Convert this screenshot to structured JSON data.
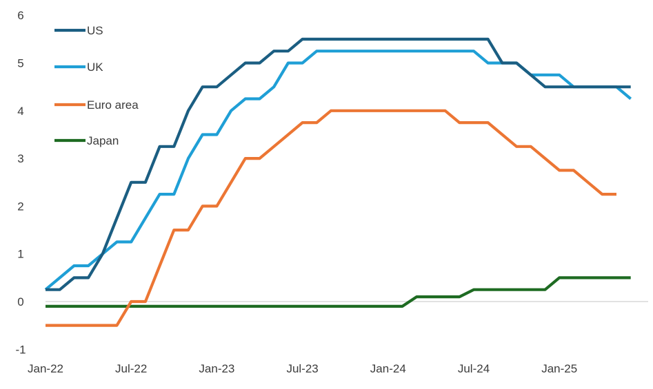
{
  "chart_data": {
    "type": "line",
    "title": "",
    "xlabel": "",
    "ylabel": "",
    "ylim": [
      -1,
      6
    ],
    "yticks": [
      -1,
      0,
      1,
      2,
      3,
      4,
      5,
      6
    ],
    "xlim": [
      "2022-01",
      "2025-06"
    ],
    "xticks": [
      "Jan-22",
      "Jul-22",
      "Jan-23",
      "Jul-23",
      "Jan-24",
      "Jul-24",
      "Jan-25"
    ],
    "grid": false,
    "zero_line": true,
    "legend_position": "top-left",
    "series": [
      {
        "name": "US",
        "color": "#1b5e82",
        "points": [
          [
            "2022-01",
            0.25
          ],
          [
            "2022-02",
            0.25
          ],
          [
            "2022-03",
            0.5
          ],
          [
            "2022-04",
            0.5
          ],
          [
            "2022-05",
            1.0
          ],
          [
            "2022-06",
            1.75
          ],
          [
            "2022-07",
            2.5
          ],
          [
            "2022-08",
            2.5
          ],
          [
            "2022-09",
            3.25
          ],
          [
            "2022-10",
            3.25
          ],
          [
            "2022-11",
            4.0
          ],
          [
            "2022-12",
            4.5
          ],
          [
            "2023-01",
            4.5
          ],
          [
            "2023-02",
            4.75
          ],
          [
            "2023-03",
            5.0
          ],
          [
            "2023-04",
            5.0
          ],
          [
            "2023-05",
            5.25
          ],
          [
            "2023-06",
            5.25
          ],
          [
            "2023-07",
            5.5
          ],
          [
            "2023-08",
            5.5
          ],
          [
            "2023-09",
            5.5
          ],
          [
            "2023-10",
            5.5
          ],
          [
            "2023-11",
            5.5
          ],
          [
            "2023-12",
            5.5
          ],
          [
            "2024-01",
            5.5
          ],
          [
            "2024-02",
            5.5
          ],
          [
            "2024-03",
            5.5
          ],
          [
            "2024-04",
            5.5
          ],
          [
            "2024-05",
            5.5
          ],
          [
            "2024-06",
            5.5
          ],
          [
            "2024-07",
            5.5
          ],
          [
            "2024-08",
            5.5
          ],
          [
            "2024-09",
            5.0
          ],
          [
            "2024-10",
            5.0
          ],
          [
            "2024-11",
            4.75
          ],
          [
            "2024-12",
            4.5
          ],
          [
            "2025-01",
            4.5
          ],
          [
            "2025-02",
            4.5
          ],
          [
            "2025-03",
            4.5
          ],
          [
            "2025-04",
            4.5
          ],
          [
            "2025-05",
            4.5
          ],
          [
            "2025-06",
            4.5
          ]
        ]
      },
      {
        "name": "UK",
        "color": "#1f9fd6",
        "points": [
          [
            "2022-01",
            0.25
          ],
          [
            "2022-02",
            0.5
          ],
          [
            "2022-03",
            0.75
          ],
          [
            "2022-04",
            0.75
          ],
          [
            "2022-05",
            1.0
          ],
          [
            "2022-06",
            1.25
          ],
          [
            "2022-07",
            1.25
          ],
          [
            "2022-08",
            1.75
          ],
          [
            "2022-09",
            2.25
          ],
          [
            "2022-10",
            2.25
          ],
          [
            "2022-11",
            3.0
          ],
          [
            "2022-12",
            3.5
          ],
          [
            "2023-01",
            3.5
          ],
          [
            "2023-02",
            4.0
          ],
          [
            "2023-03",
            4.25
          ],
          [
            "2023-04",
            4.25
          ],
          [
            "2023-05",
            4.5
          ],
          [
            "2023-06",
            5.0
          ],
          [
            "2023-07",
            5.0
          ],
          [
            "2023-08",
            5.25
          ],
          [
            "2023-09",
            5.25
          ],
          [
            "2023-10",
            5.25
          ],
          [
            "2023-11",
            5.25
          ],
          [
            "2023-12",
            5.25
          ],
          [
            "2024-01",
            5.25
          ],
          [
            "2024-02",
            5.25
          ],
          [
            "2024-03",
            5.25
          ],
          [
            "2024-04",
            5.25
          ],
          [
            "2024-05",
            5.25
          ],
          [
            "2024-06",
            5.25
          ],
          [
            "2024-07",
            5.25
          ],
          [
            "2024-08",
            5.0
          ],
          [
            "2024-09",
            5.0
          ],
          [
            "2024-10",
            5.0
          ],
          [
            "2024-11",
            4.75
          ],
          [
            "2024-12",
            4.75
          ],
          [
            "2025-01",
            4.75
          ],
          [
            "2025-02",
            4.5
          ],
          [
            "2025-03",
            4.5
          ],
          [
            "2025-04",
            4.5
          ],
          [
            "2025-05",
            4.5
          ],
          [
            "2025-06",
            4.25
          ]
        ]
      },
      {
        "name": "Euro area",
        "color": "#ec7634",
        "points": [
          [
            "2022-01",
            -0.5
          ],
          [
            "2022-02",
            -0.5
          ],
          [
            "2022-03",
            -0.5
          ],
          [
            "2022-04",
            -0.5
          ],
          [
            "2022-05",
            -0.5
          ],
          [
            "2022-06",
            -0.5
          ],
          [
            "2022-07",
            0.0
          ],
          [
            "2022-08",
            0.0
          ],
          [
            "2022-09",
            0.75
          ],
          [
            "2022-10",
            1.5
          ],
          [
            "2022-11",
            1.5
          ],
          [
            "2022-12",
            2.0
          ],
          [
            "2023-01",
            2.0
          ],
          [
            "2023-02",
            2.5
          ],
          [
            "2023-03",
            3.0
          ],
          [
            "2023-04",
            3.0
          ],
          [
            "2023-05",
            3.25
          ],
          [
            "2023-06",
            3.5
          ],
          [
            "2023-07",
            3.75
          ],
          [
            "2023-08",
            3.75
          ],
          [
            "2023-09",
            4.0
          ],
          [
            "2023-10",
            4.0
          ],
          [
            "2023-11",
            4.0
          ],
          [
            "2023-12",
            4.0
          ],
          [
            "2024-01",
            4.0
          ],
          [
            "2024-02",
            4.0
          ],
          [
            "2024-03",
            4.0
          ],
          [
            "2024-04",
            4.0
          ],
          [
            "2024-05",
            4.0
          ],
          [
            "2024-06",
            3.75
          ],
          [
            "2024-07",
            3.75
          ],
          [
            "2024-08",
            3.75
          ],
          [
            "2024-09",
            3.5
          ],
          [
            "2024-10",
            3.25
          ],
          [
            "2024-11",
            3.25
          ],
          [
            "2024-12",
            3.0
          ],
          [
            "2025-01",
            2.75
          ],
          [
            "2025-02",
            2.75
          ],
          [
            "2025-03",
            2.5
          ],
          [
            "2025-04",
            2.25
          ],
          [
            "2025-05",
            2.25
          ]
        ]
      },
      {
        "name": "Japan",
        "color": "#1e6b22",
        "points": [
          [
            "2022-01",
            -0.1
          ],
          [
            "2022-02",
            -0.1
          ],
          [
            "2022-03",
            -0.1
          ],
          [
            "2022-04",
            -0.1
          ],
          [
            "2022-05",
            -0.1
          ],
          [
            "2022-06",
            -0.1
          ],
          [
            "2022-07",
            -0.1
          ],
          [
            "2022-08",
            -0.1
          ],
          [
            "2022-09",
            -0.1
          ],
          [
            "2022-10",
            -0.1
          ],
          [
            "2022-11",
            -0.1
          ],
          [
            "2022-12",
            -0.1
          ],
          [
            "2023-01",
            -0.1
          ],
          [
            "2023-02",
            -0.1
          ],
          [
            "2023-03",
            -0.1
          ],
          [
            "2023-04",
            -0.1
          ],
          [
            "2023-05",
            -0.1
          ],
          [
            "2023-06",
            -0.1
          ],
          [
            "2023-07",
            -0.1
          ],
          [
            "2023-08",
            -0.1
          ],
          [
            "2023-09",
            -0.1
          ],
          [
            "2023-10",
            -0.1
          ],
          [
            "2023-11",
            -0.1
          ],
          [
            "2023-12",
            -0.1
          ],
          [
            "2024-01",
            -0.1
          ],
          [
            "2024-02",
            -0.1
          ],
          [
            "2024-03",
            0.1
          ],
          [
            "2024-04",
            0.1
          ],
          [
            "2024-05",
            0.1
          ],
          [
            "2024-06",
            0.1
          ],
          [
            "2024-07",
            0.25
          ],
          [
            "2024-08",
            0.25
          ],
          [
            "2024-09",
            0.25
          ],
          [
            "2024-10",
            0.25
          ],
          [
            "2024-11",
            0.25
          ],
          [
            "2024-12",
            0.25
          ],
          [
            "2025-01",
            0.5
          ],
          [
            "2025-02",
            0.5
          ],
          [
            "2025-03",
            0.5
          ],
          [
            "2025-04",
            0.5
          ],
          [
            "2025-05",
            0.5
          ],
          [
            "2025-06",
            0.5
          ]
        ]
      }
    ]
  }
}
